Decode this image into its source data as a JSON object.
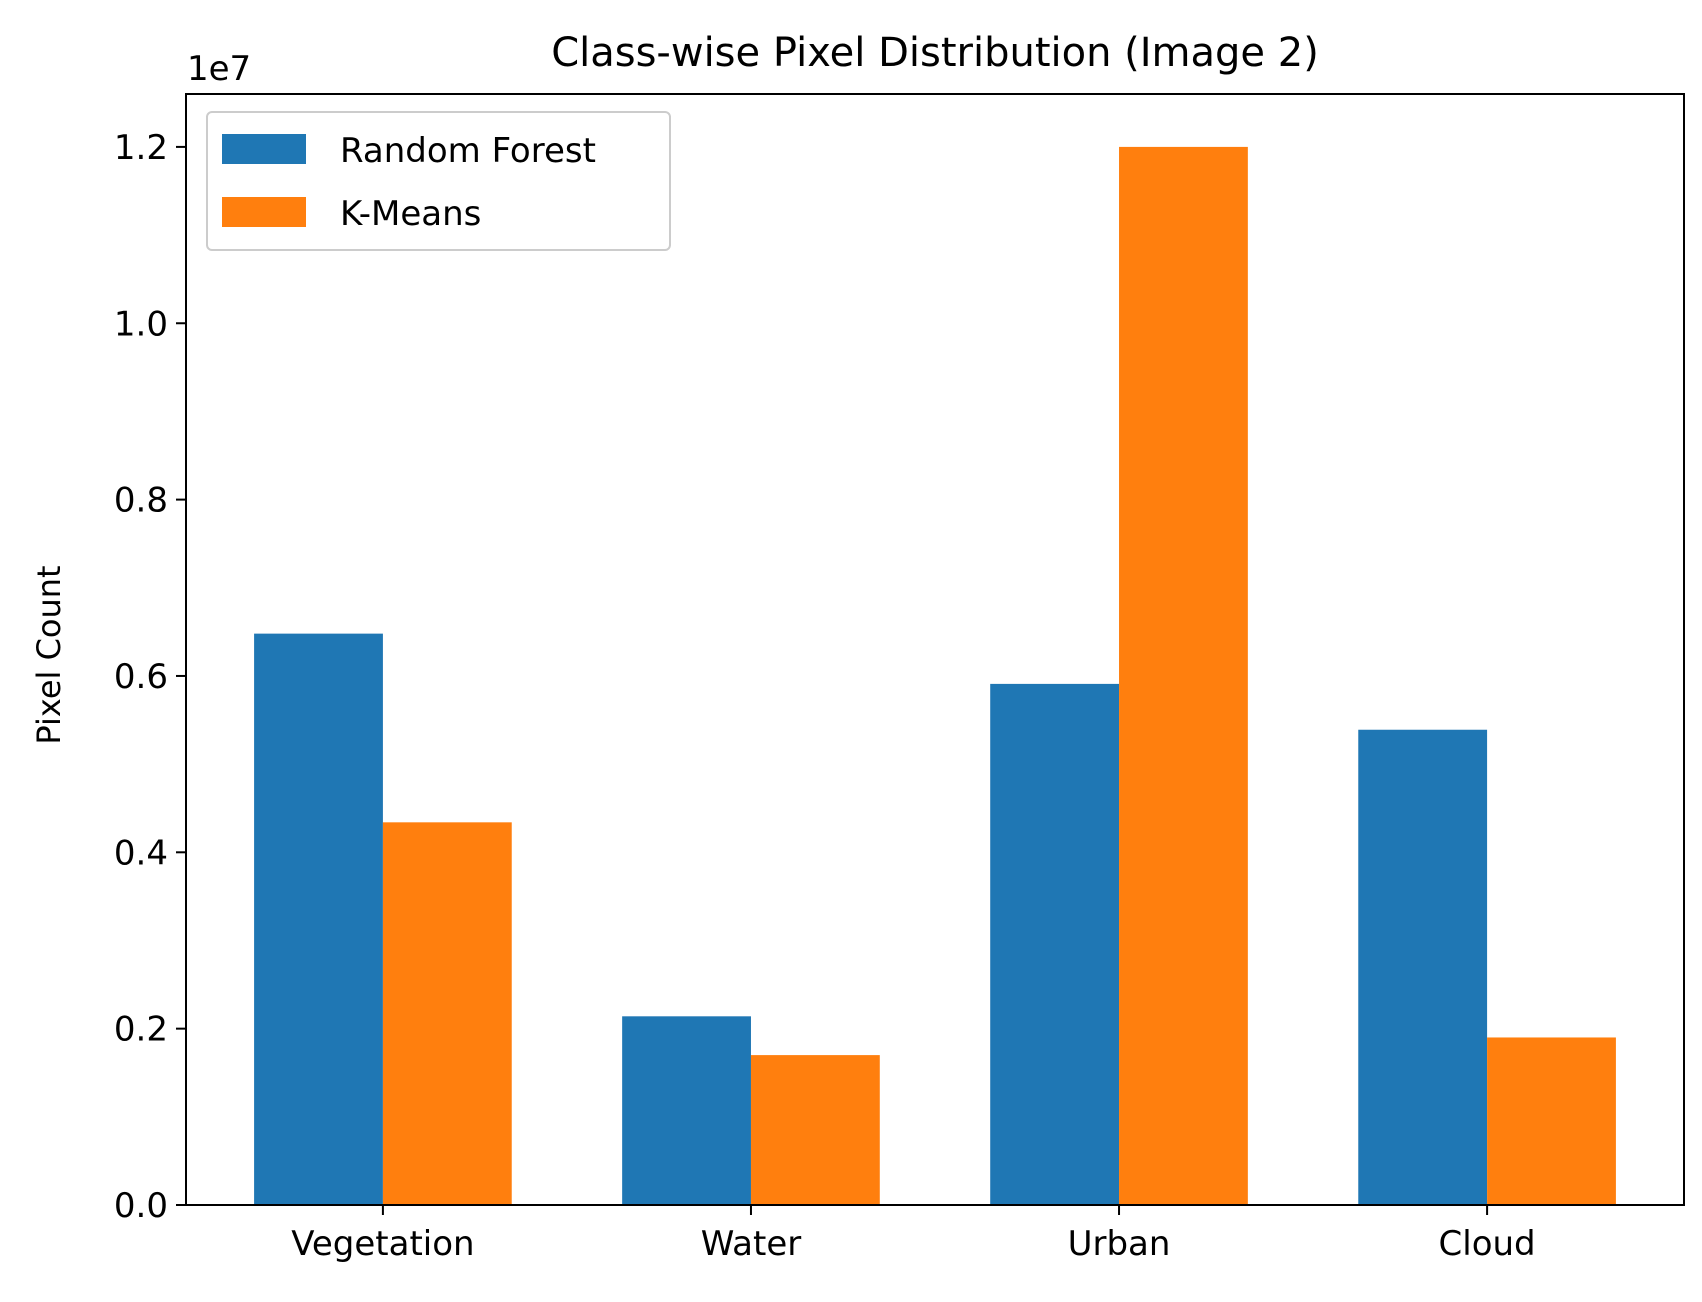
{
  "chart_data": {
    "type": "bar",
    "title": "Class-wise Pixel Distribution (Image 2)",
    "xlabel": "",
    "ylabel": "Pixel Count",
    "y_offset_label": "1e7",
    "categories": [
      "Vegetation",
      "Water",
      "Urban",
      "Cloud"
    ],
    "series": [
      {
        "name": "Random Forest",
        "color": "#1f77b4",
        "values": [
          6480000,
          2140000,
          5910000,
          5390000
        ]
      },
      {
        "name": "K-Means",
        "color": "#ff7f0e",
        "values": [
          4340000,
          1700000,
          12000000,
          1900000
        ]
      }
    ],
    "ylim": [
      0,
      12600000
    ],
    "yticks": [
      0,
      2000000,
      4000000,
      6000000,
      8000000,
      10000000,
      12000000
    ],
    "ytick_labels": [
      "0.0",
      "0.2",
      "0.4",
      "0.6",
      "0.8",
      "1.0",
      "1.2"
    ],
    "legend": "top-left",
    "grid": false
  }
}
